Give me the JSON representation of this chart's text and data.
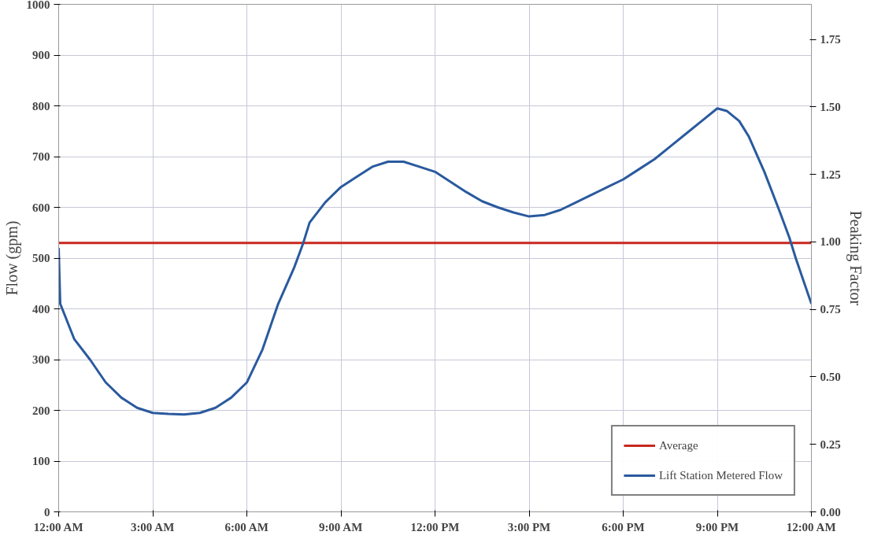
{
  "chart_data": {
    "type": "line",
    "ylabel": "Flow (gpm)",
    "y2label": "Peaking Factor",
    "xlim": [
      0,
      24
    ],
    "xticks": [
      {
        "value": 0,
        "label": "12:00 AM"
      },
      {
        "value": 3,
        "label": "3:00 AM"
      },
      {
        "value": 6,
        "label": "6:00 AM"
      },
      {
        "value": 9,
        "label": "9:00 AM"
      },
      {
        "value": 12,
        "label": "12:00 PM"
      },
      {
        "value": 15,
        "label": "3:00 PM"
      },
      {
        "value": 18,
        "label": "6:00 PM"
      },
      {
        "value": 21,
        "label": "9:00 PM"
      },
      {
        "value": 24,
        "label": "12:00 AM"
      }
    ],
    "ylim": [
      0,
      1000
    ],
    "yticks": [
      0,
      100,
      200,
      300,
      400,
      500,
      600,
      700,
      800,
      900,
      1000
    ],
    "y2lim": [
      0,
      1.88
    ],
    "y2ticks": [
      {
        "value": 0,
        "label": "0.00"
      },
      {
        "value": 0.25,
        "label": "0.25"
      },
      {
        "value": 0.5,
        "label": "0.50"
      },
      {
        "value": 0.75,
        "label": "0.75"
      },
      {
        "value": 1,
        "label": "1.00"
      },
      {
        "value": 1.25,
        "label": "1.25"
      },
      {
        "value": 1.5,
        "label": "1.50"
      },
      {
        "value": 1.75,
        "label": "1.75"
      }
    ],
    "grid": true,
    "legend": "bottom right",
    "marker": "none",
    "line_style": "solid",
    "series": [
      {
        "name": "Average",
        "color": "#c8281e",
        "x": [
          0,
          24
        ],
        "values": [
          530,
          530
        ]
      },
      {
        "name": "Lift Station Metered Flow",
        "color": "#2a5a9e",
        "x": [
          0,
          0.05,
          0.5,
          1,
          1.5,
          2,
          2.5,
          3,
          3.5,
          4,
          4.5,
          5,
          5.5,
          6,
          6.5,
          7,
          7.5,
          7.8,
          8,
          8.5,
          9,
          9.5,
          10,
          10.5,
          11,
          11.5,
          12,
          12.5,
          13,
          13.5,
          14,
          14.5,
          15,
          15.5,
          16,
          16.5,
          17,
          17.5,
          18,
          18.5,
          19,
          19.5,
          20,
          20.5,
          21,
          21.3,
          21.7,
          22,
          22.5,
          23,
          23.3,
          23.5,
          24
        ],
        "values": [
          520,
          410,
          340,
          300,
          255,
          225,
          205,
          195,
          193,
          192,
          195,
          205,
          225,
          255,
          320,
          410,
          480,
          530,
          570,
          610,
          640,
          660,
          680,
          690,
          690,
          680,
          670,
          650,
          630,
          612,
          600,
          590,
          582,
          585,
          595,
          610,
          625,
          640,
          655,
          675,
          695,
          720,
          745,
          770,
          795,
          790,
          770,
          740,
          670,
          590,
          540,
          500,
          410
        ]
      }
    ]
  }
}
